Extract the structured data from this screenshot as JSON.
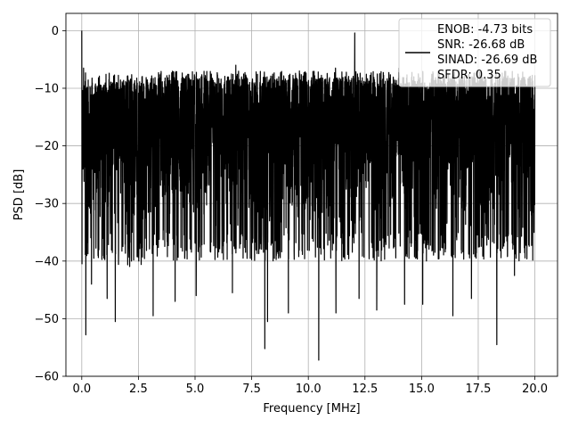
{
  "chart_data": {
    "type": "line",
    "title": "",
    "xlabel": "Frequency [MHz]",
    "ylabel": "PSD [dB]",
    "xlim": [
      -0.7,
      21.0
    ],
    "ylim": [
      -60,
      3
    ],
    "x_ticks": [
      0.0,
      2.5,
      5.0,
      7.5,
      10.0,
      12.5,
      15.0,
      17.5,
      20.0
    ],
    "x_tick_labels": [
      "0.0",
      "2.5",
      "5.0",
      "7.5",
      "10.0",
      "12.5",
      "15.0",
      "17.5",
      "20.0"
    ],
    "y_ticks": [
      0,
      -10,
      -20,
      -30,
      -40,
      -50,
      -60
    ],
    "y_tick_labels": [
      "0",
      "−10",
      "−20",
      "−30",
      "−40",
      "−50",
      "−60"
    ],
    "grid": true,
    "legend": {
      "placement": "top-right",
      "lines": [
        "ENOB: -4.73 bits",
        "SNR: -26.68 dB",
        "SINAD: -26.69 dB",
        "SFDR: 0.35"
      ]
    },
    "series": [
      {
        "color": "#000000",
        "x_range": [
          0.0,
          20.0
        ],
        "typical_upper_envelope_db": -10,
        "typical_band_db": [
          -35,
          -8
        ],
        "samples": 4096,
        "peaks": [
          {
            "x": 0.0,
            "y": 0.0
          },
          {
            "x": 12.05,
            "y": -0.4
          },
          {
            "x": 0.08,
            "y": -6.5
          },
          {
            "x": 6.8,
            "y": -6.0
          },
          {
            "x": 11.2,
            "y": -6.5
          },
          {
            "x": 14.0,
            "y": -6.5
          }
        ],
        "dips": [
          {
            "x": 0.18,
            "y": -52.8
          },
          {
            "x": 0.43,
            "y": -44.0
          },
          {
            "x": 1.12,
            "y": -46.5
          },
          {
            "x": 1.48,
            "y": -50.5
          },
          {
            "x": 3.15,
            "y": -49.5
          },
          {
            "x": 4.12,
            "y": -47.0
          },
          {
            "x": 5.05,
            "y": -46.0
          },
          {
            "x": 6.65,
            "y": -45.5
          },
          {
            "x": 8.08,
            "y": -55.2
          },
          {
            "x": 8.2,
            "y": -50.5
          },
          {
            "x": 9.12,
            "y": -49.0
          },
          {
            "x": 10.46,
            "y": -57.2
          },
          {
            "x": 11.22,
            "y": -49.0
          },
          {
            "x": 12.24,
            "y": -46.5
          },
          {
            "x": 13.02,
            "y": -48.5
          },
          {
            "x": 14.25,
            "y": -47.5
          },
          {
            "x": 15.05,
            "y": -47.5
          },
          {
            "x": 16.38,
            "y": -49.5
          },
          {
            "x": 17.2,
            "y": -46.5
          },
          {
            "x": 18.32,
            "y": -54.5
          },
          {
            "x": 19.1,
            "y": -42.5
          }
        ]
      }
    ]
  }
}
